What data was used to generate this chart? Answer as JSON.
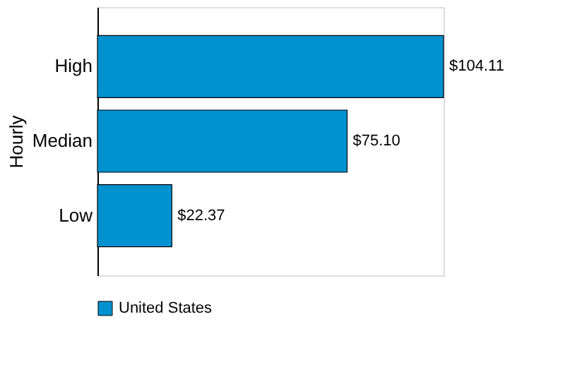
{
  "chart_data": {
    "type": "bar",
    "orientation": "horizontal",
    "ylabel": "Hourly",
    "categories": [
      "High",
      "Median",
      "Low"
    ],
    "series": [
      {
        "name": "United States",
        "color": "#0092d0",
        "values": [
          104.11,
          75.1,
          22.37
        ],
        "value_labels": [
          "$104.11",
          "$75.10",
          "$22.37"
        ]
      }
    ],
    "tick_labels": "y",
    "grid": false,
    "legend": "bottom"
  }
}
